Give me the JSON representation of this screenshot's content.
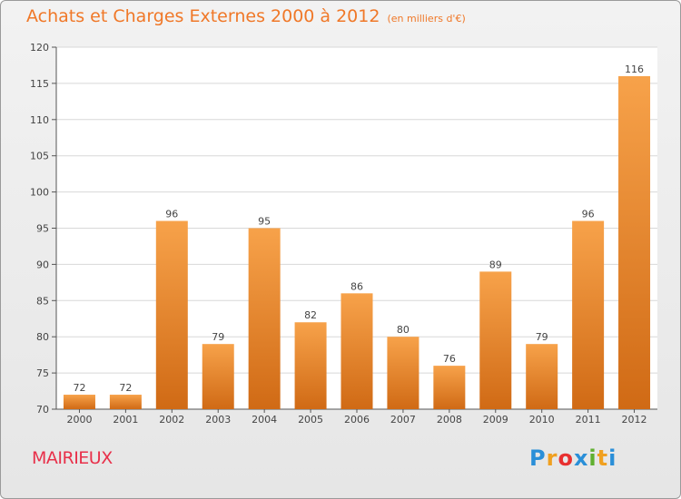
{
  "title": "Achats et Charges Externes 2000 à 2012",
  "subtitle": "(en milliers d'€)",
  "commune": "MAIRIEUX",
  "logo": {
    "letters": [
      "P",
      "r",
      "o",
      "x",
      "i",
      "t",
      "i"
    ],
    "colors": [
      "#2a8fd8",
      "#f0a020",
      "#e83030",
      "#2a8fd8",
      "#60b030",
      "#f0a020",
      "#2a8fd8"
    ]
  },
  "colors": {
    "bar_light": "#f7a24a",
    "bar_dark": "#d06a15",
    "title": "#f07828",
    "commune": "#e8304a"
  },
  "chart_data": {
    "type": "bar",
    "title": "Achats et Charges Externes 2000 à 2012",
    "subtitle": "(en milliers d'€)",
    "categories": [
      "2000",
      "2001",
      "2002",
      "2003",
      "2004",
      "2005",
      "2006",
      "2007",
      "2008",
      "2009",
      "2010",
      "2011",
      "2012"
    ],
    "values": [
      72,
      72,
      96,
      79,
      95,
      82,
      86,
      80,
      76,
      89,
      79,
      96,
      116
    ],
    "ylim": [
      70,
      120
    ],
    "yticks": [
      70,
      75,
      80,
      85,
      90,
      95,
      100,
      105,
      110,
      115,
      120
    ],
    "grid": true,
    "xlabel": "",
    "ylabel": ""
  }
}
